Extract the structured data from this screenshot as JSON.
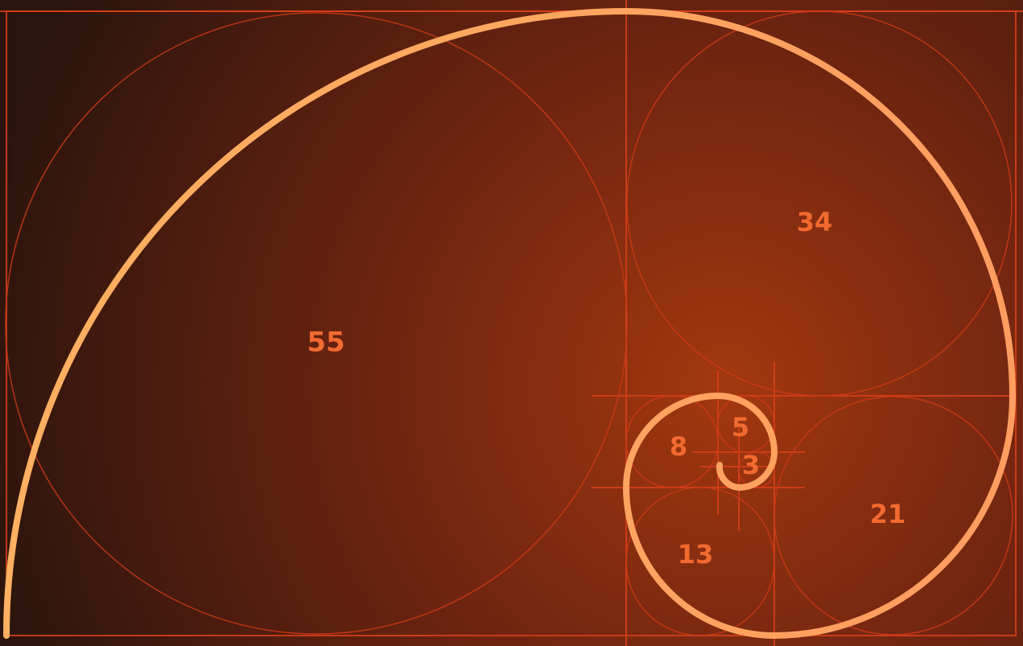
{
  "squares": [
    {
      "label": "55"
    },
    {
      "label": "34"
    },
    {
      "label": "21"
    },
    {
      "label": "13"
    },
    {
      "label": "8"
    },
    {
      "label": "5"
    },
    {
      "label": "3"
    }
  ]
}
